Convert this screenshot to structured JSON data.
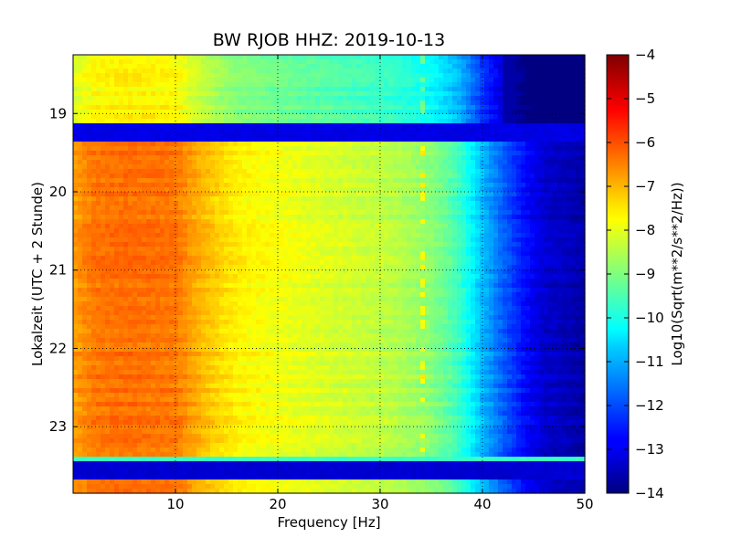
{
  "chart_data": {
    "type": "heatmap",
    "title": "BW RJOB HHZ: 2019-10-13",
    "xlabel": "Frequency [Hz]",
    "ylabel": "Lokalzeit (UTC + 2 Stunde)",
    "colorbar_label": "Log10(Sqrt(m**2/s**2/Hz))",
    "xlim": [
      0,
      50
    ],
    "ylim": [
      18.25,
      23.85
    ],
    "y_inverted": true,
    "clim": [
      -14,
      -4
    ],
    "colormap": "jet",
    "grid": "dotted",
    "x_ticks": [
      10,
      20,
      30,
      40,
      50
    ],
    "y_ticks": [
      19,
      20,
      21,
      22,
      23
    ],
    "colorbar_ticks": [
      -4,
      -5,
      -6,
      -7,
      -8,
      -9,
      -10,
      -11,
      -12,
      -13,
      -14
    ],
    "spectral_profile": {
      "frequency_hz": [
        0,
        2,
        5,
        8,
        10,
        12,
        14,
        16,
        18,
        20,
        22,
        25,
        28,
        30,
        32,
        35,
        37,
        38,
        40,
        42,
        44,
        46,
        50
      ],
      "log10_amplitude": [
        -6.8,
        -6.4,
        -6.3,
        -6.35,
        -6.4,
        -6.9,
        -7.3,
        -7.6,
        -7.75,
        -7.85,
        -7.95,
        -8.1,
        -8.25,
        -8.35,
        -8.5,
        -8.9,
        -9.4,
        -9.8,
        -10.9,
        -11.8,
        -12.6,
        -13.2,
        -13.6
      ]
    },
    "segments": [
      {
        "start_hour": 18.25,
        "end_hour": 19.1,
        "offset": -1.3,
        "high_cutoff_hz": 42
      },
      {
        "start_hour": 19.1,
        "end_hour": 19.33,
        "constant": -13.0
      },
      {
        "start_hour": 19.33,
        "end_hour": 23.37,
        "offset": 0.0,
        "high_cutoff_hz": 50
      },
      {
        "start_hour": 23.37,
        "end_hour": 23.42,
        "constant": -9.7
      },
      {
        "start_hour": 23.42,
        "end_hour": 23.68,
        "constant": -13.2
      },
      {
        "start_hour": 23.68,
        "end_hour": 23.85,
        "offset": 0.0,
        "high_cutoff_hz": 50
      }
    ],
    "tonal_line_hz": 34.2
  }
}
